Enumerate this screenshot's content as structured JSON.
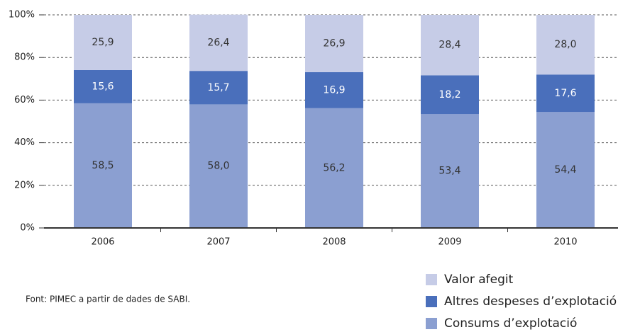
{
  "chart_data": {
    "type": "stacked-bar",
    "categories": [
      "2006",
      "2007",
      "2008",
      "2009",
      "2010"
    ],
    "series": [
      {
        "name": "Consums d’explotació",
        "color": "#8b9fd1",
        "values": [
          58.5,
          58.0,
          56.2,
          53.4,
          54.4
        ],
        "value_labels": [
          "58,5",
          "58,0",
          "56,2",
          "53,4",
          "54,4"
        ]
      },
      {
        "name": "Altres despeses d’explotació",
        "color": "#4a6fbb",
        "values": [
          15.6,
          15.7,
          16.9,
          18.2,
          17.6
        ],
        "value_labels": [
          "15,6",
          "15,7",
          "16,9",
          "18,2",
          "17,6"
        ]
      },
      {
        "name": "Valor afegit",
        "color": "#c6cce7",
        "values": [
          25.9,
          26.4,
          26.9,
          28.4,
          28.0
        ],
        "value_labels": [
          "25,9",
          "26,4",
          "26,9",
          "28,4",
          "28,0"
        ]
      }
    ],
    "ylim": [
      0,
      100
    ],
    "yticks": [
      {
        "value": 0,
        "label": "0%"
      },
      {
        "value": 20,
        "label": "20%"
      },
      {
        "value": 40,
        "label": "40%"
      },
      {
        "value": 60,
        "label": "60%"
      },
      {
        "value": 80,
        "label": "80%"
      },
      {
        "value": 100,
        "label": "100%"
      }
    ],
    "grid": true,
    "source": "Font: PIMEC a partir de dades de SABI."
  }
}
